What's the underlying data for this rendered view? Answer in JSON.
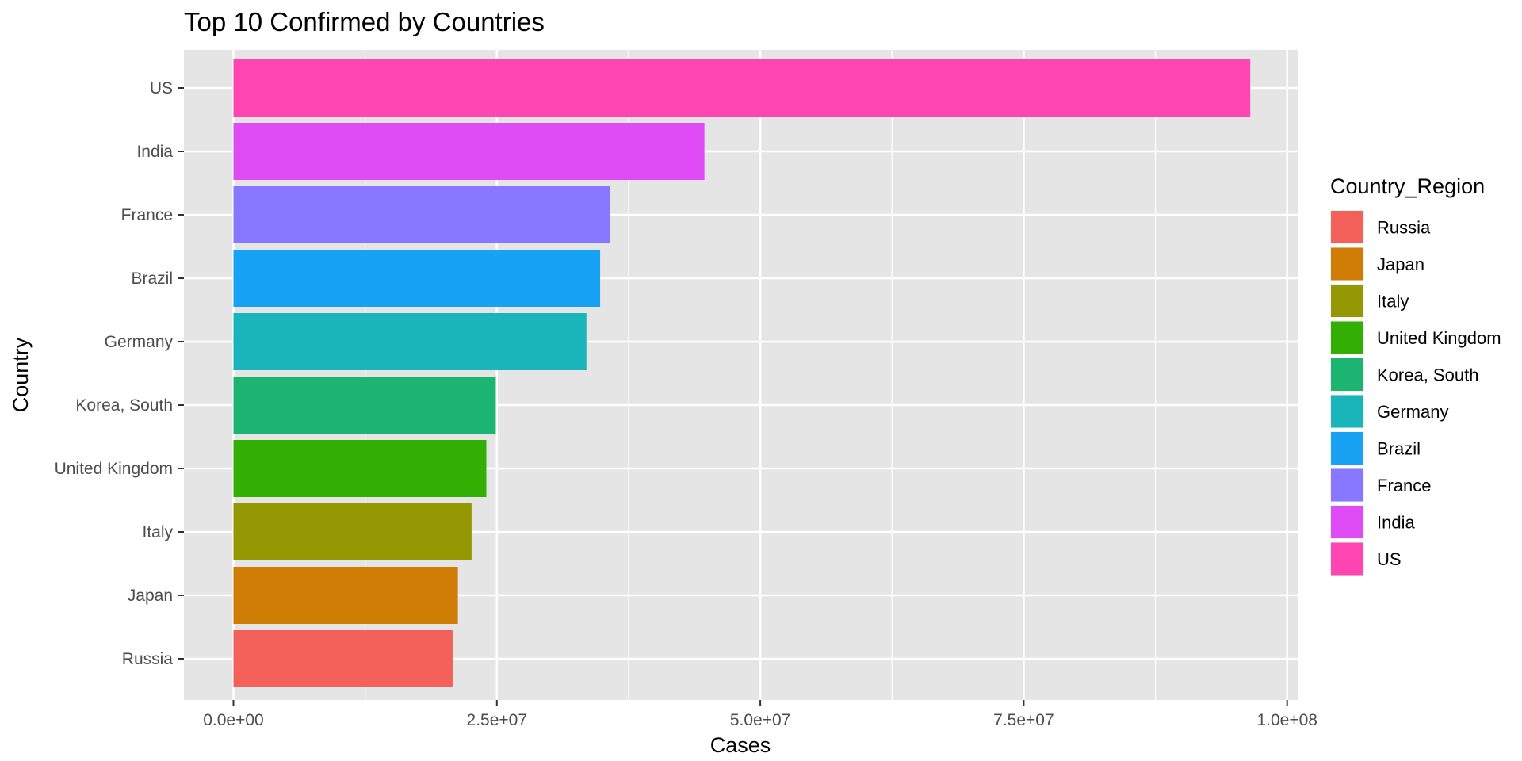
{
  "chart_data": {
    "type": "bar",
    "orientation": "horizontal",
    "title": "Top 10 Confirmed by Countries",
    "xlabel": "Cases",
    "ylabel": "Country",
    "xlim": [
      -4700000,
      101000000
    ],
    "x_ticks": [
      0,
      25000000,
      50000000,
      75000000,
      100000000
    ],
    "x_tick_labels": [
      "0.0e+00",
      "2.5e+07",
      "5.0e+07",
      "7.5e+07",
      "1.0e+08"
    ],
    "categories": [
      "US",
      "India",
      "France",
      "Brazil",
      "Germany",
      "Korea, South",
      "United Kingdom",
      "Italy",
      "Japan",
      "Russia"
    ],
    "values": [
      96500000,
      44700000,
      35700000,
      34800000,
      33500000,
      24900000,
      24000000,
      22600000,
      21300000,
      20800000
    ],
    "colors": [
      "#FF45B2",
      "#DF4CF5",
      "#8778FF",
      "#17A2F4",
      "#19B5BA",
      "#1BB470",
      "#33AE03",
      "#949903",
      "#CF7D04",
      "#F4615B"
    ],
    "grid": true,
    "legend": {
      "title": "Country_Region",
      "placement": "right",
      "items": [
        {
          "label": "Russia",
          "color": "#F4615B"
        },
        {
          "label": "Japan",
          "color": "#CF7D04"
        },
        {
          "label": "Italy",
          "color": "#949903"
        },
        {
          "label": "United Kingdom",
          "color": "#33AE03"
        },
        {
          "label": "Korea, South",
          "color": "#1BB470"
        },
        {
          "label": "Germany",
          "color": "#19B5BA"
        },
        {
          "label": "Brazil",
          "color": "#17A2F4"
        },
        {
          "label": "France",
          "color": "#8778FF"
        },
        {
          "label": "India",
          "color": "#DF4CF5"
        },
        {
          "label": "US",
          "color": "#FF45B2"
        }
      ]
    }
  }
}
